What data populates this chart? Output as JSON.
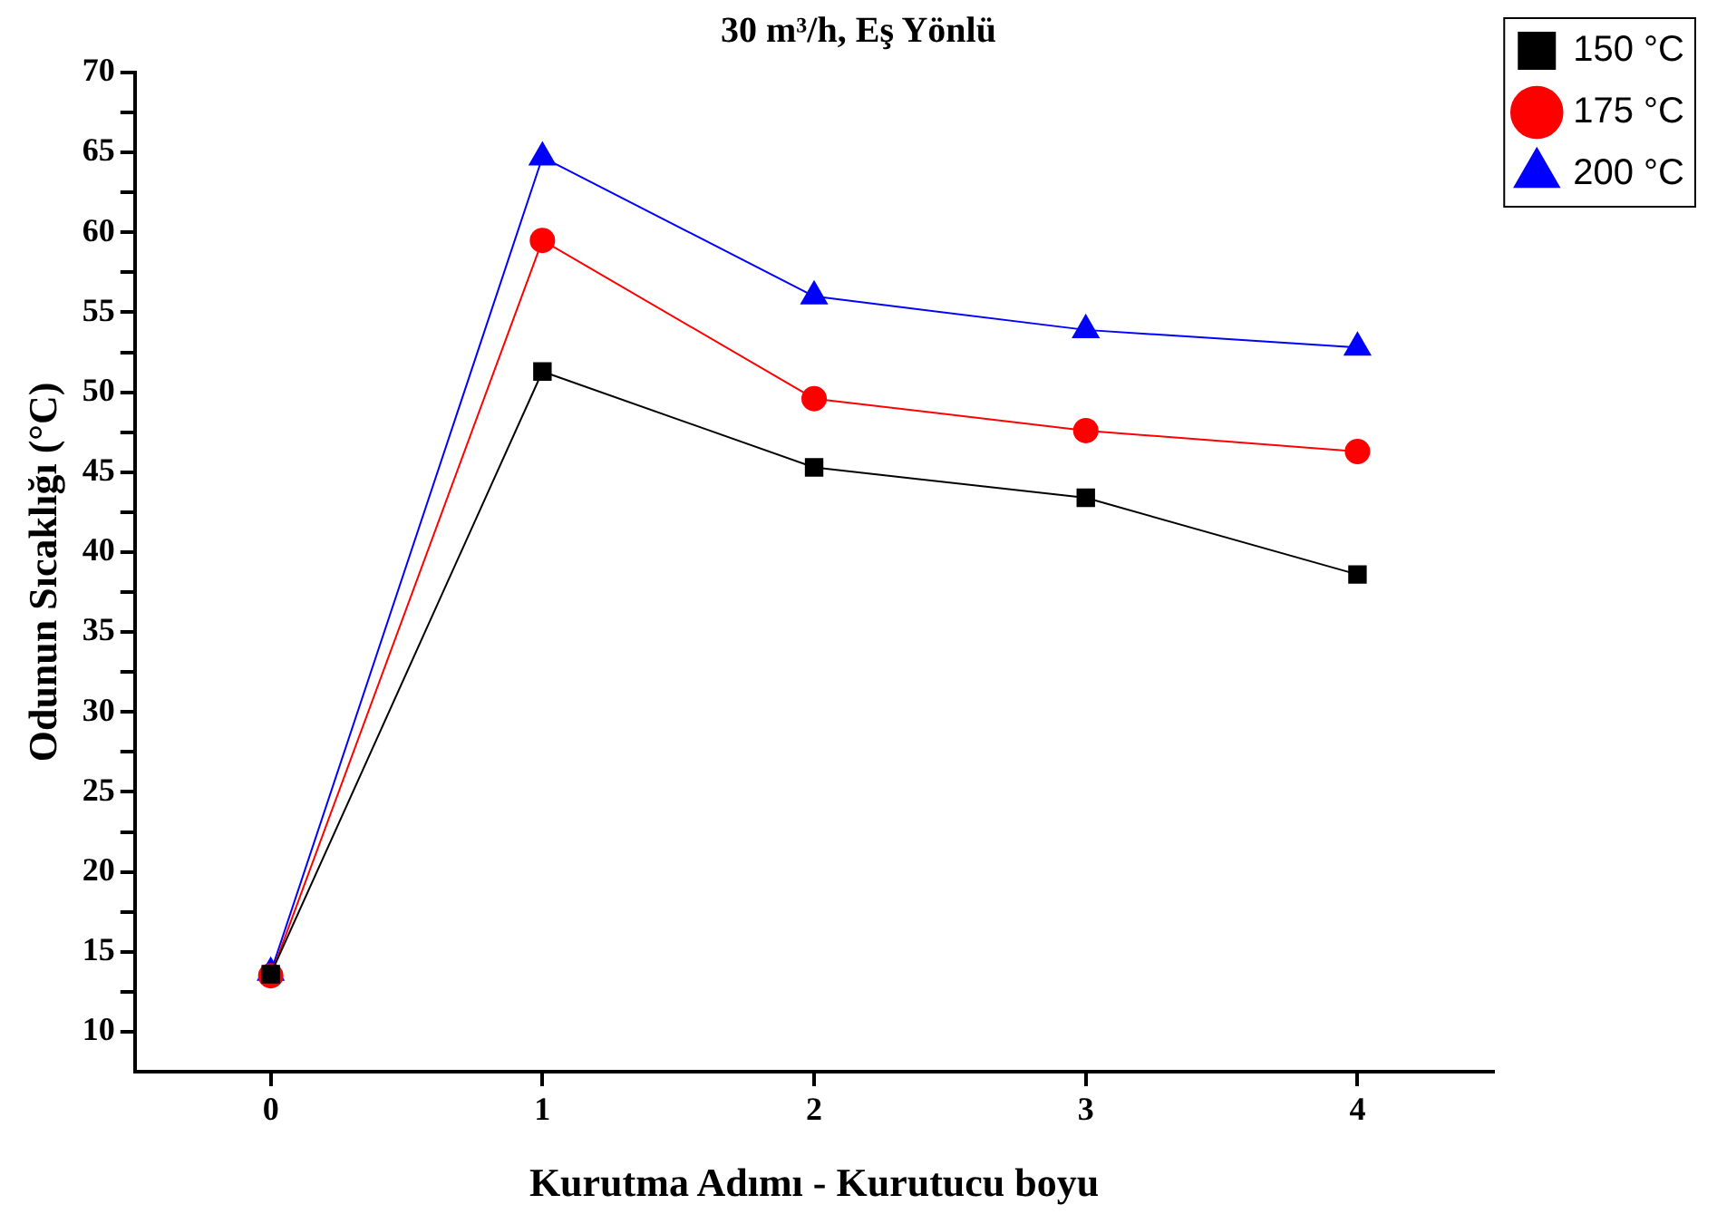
{
  "chart_data": {
    "type": "line",
    "title": "30 m³/h, Eş Yönlü",
    "xlabel": "Kurutma Adımı - Kurutucu boyu",
    "ylabel": "Odunun Sıcaklığı (°C)",
    "x": [
      0,
      1,
      2,
      3,
      4
    ],
    "xlim": [
      -0.5,
      4.5
    ],
    "xticks": [
      0,
      1,
      2,
      3,
      4
    ],
    "ylim": [
      7.5,
      70
    ],
    "yticks": [
      10,
      {
        "value": 12.5,
        "label": null
      },
      15,
      {
        "value": 17.5,
        "label": null
      },
      20,
      {
        "value": 22.5,
        "label": null
      },
      25,
      {
        "value": 27.5,
        "label": null
      },
      30,
      {
        "value": 32.5,
        "label": null
      },
      35,
      {
        "value": 37.5,
        "label": null
      },
      40,
      {
        "value": 42.5,
        "label": null
      },
      45,
      {
        "value": 47.5,
        "label": null
      },
      50,
      {
        "value": 52.5,
        "label": null
      },
      55,
      {
        "value": 57.5,
        "label": null
      },
      60,
      {
        "value": 62.5,
        "label": null
      },
      65,
      {
        "value": 67.5,
        "label": null
      },
      70
    ],
    "grid": false,
    "legend": "top right",
    "line_style": "solid",
    "series": [
      {
        "name": "150 °C",
        "color": "#000000",
        "marker": "square",
        "values": [
          13.6,
          51.3,
          45.3,
          43.4,
          38.6
        ]
      },
      {
        "name": "175 °C",
        "color": "#ff0000",
        "marker": "circle",
        "values": [
          13.5,
          59.5,
          49.6,
          47.6,
          46.3
        ]
      },
      {
        "name": "200 °C",
        "color": "#0000ff",
        "marker": "triangle",
        "values": [
          13.7,
          64.7,
          56.0,
          53.9,
          52.8
        ]
      }
    ]
  }
}
